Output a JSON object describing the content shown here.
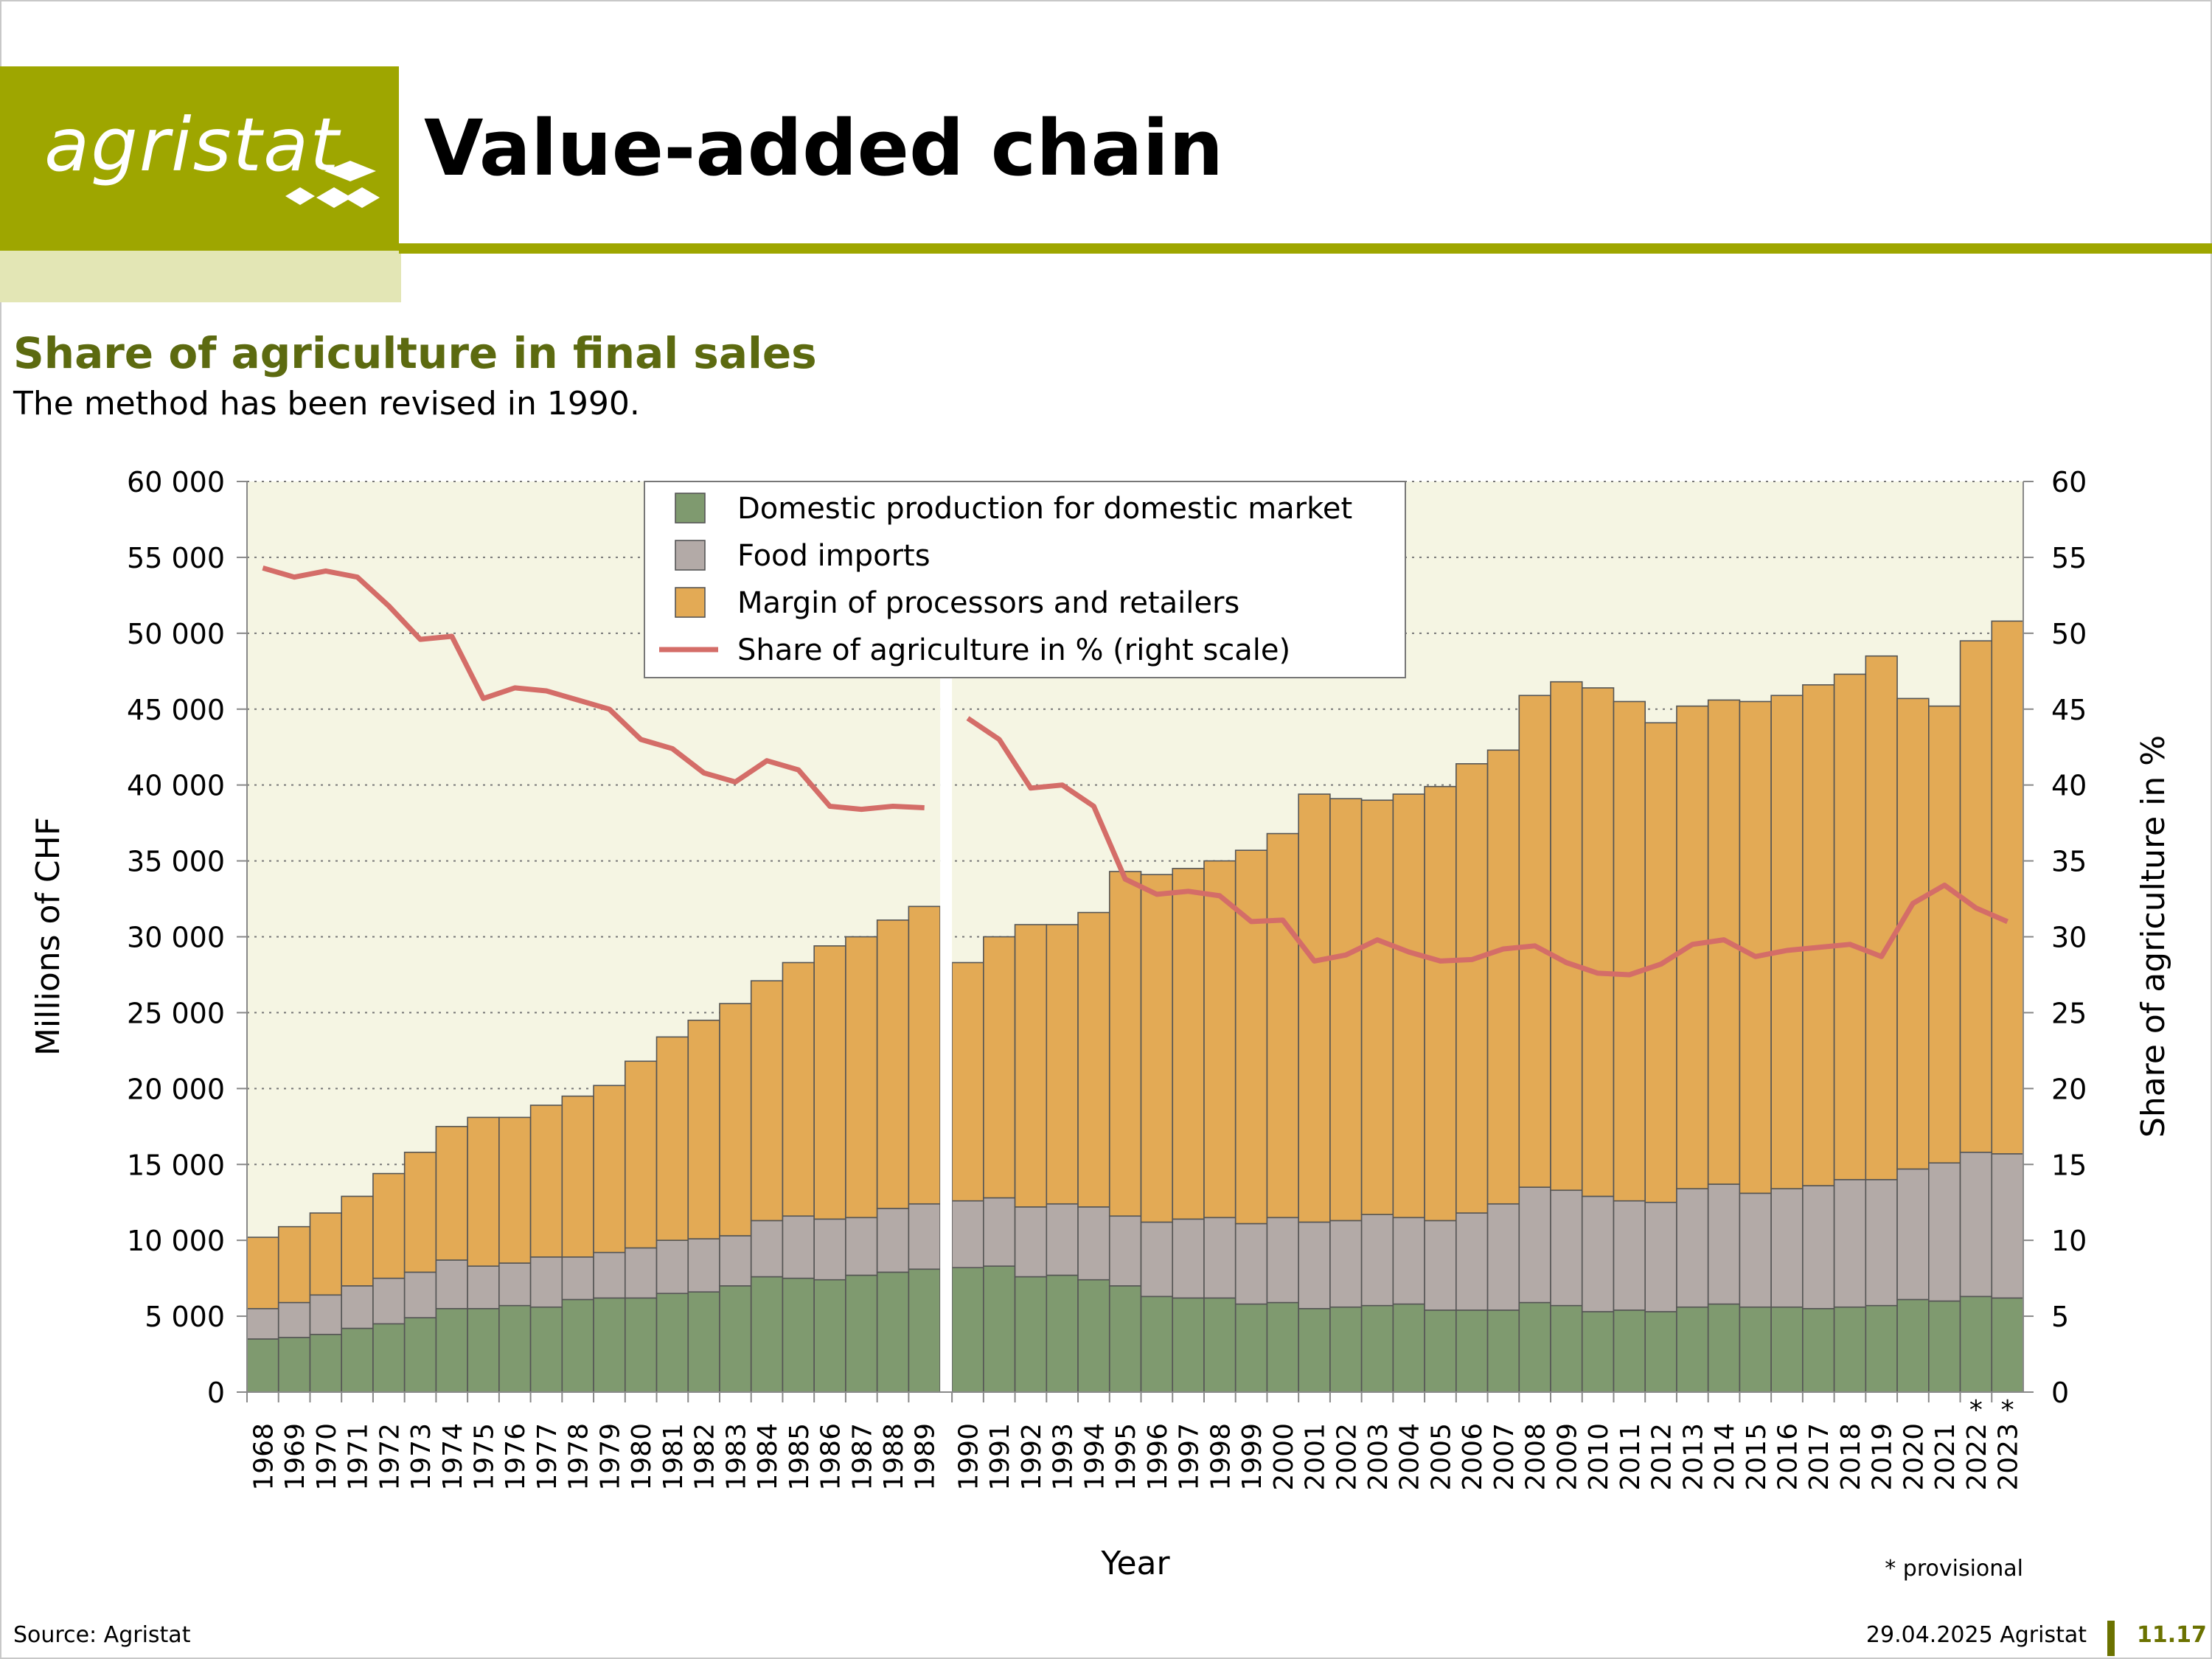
{
  "header": {
    "logo_text": "agristat",
    "title": "Value-added chain"
  },
  "chart_data": {
    "type": "bar",
    "stacked": true,
    "title": "Share of agriculture in final sales",
    "subtitle": "The method has been revised in 1990.",
    "xlabel": "Year",
    "ylabel": "Millions of CHF",
    "y2label": "Share of agriculture in %",
    "ylim": [
      0,
      60000
    ],
    "y2lim": [
      0,
      60
    ],
    "yticks": [
      "0",
      "5 000",
      "10 000",
      "15 000",
      "20 000",
      "25 000",
      "30 000",
      "35 000",
      "40 000",
      "45 000",
      "50 000",
      "55 000",
      "60 000"
    ],
    "y2ticks": [
      "0",
      "5",
      "10",
      "15",
      "20",
      "25",
      "30",
      "35",
      "40",
      "45",
      "50",
      "55",
      "60"
    ],
    "grid": true,
    "legend_position": "top-center",
    "break_after": "1989",
    "categories": [
      "1968",
      "1969",
      "1970",
      "1971",
      "1972",
      "1973",
      "1974",
      "1975",
      "1976",
      "1977",
      "1978",
      "1979",
      "1980",
      "1981",
      "1982",
      "1983",
      "1984",
      "1985",
      "1986",
      "1987",
      "1988",
      "1989",
      "1990",
      "1991",
      "1992",
      "1993",
      "1994",
      "1995",
      "1996",
      "1997",
      "1998",
      "1999",
      "2000",
      "2001",
      "2002",
      "2003",
      "2004",
      "2005",
      "2006",
      "2007",
      "2008",
      "2009",
      "2010",
      "2011",
      "2012",
      "2013",
      "2014",
      "2015",
      "2016",
      "2017",
      "2018",
      "2019",
      "2020",
      "2021",
      "2022",
      "2023"
    ],
    "provisional_marks": [
      "*",
      "*"
    ],
    "provisional_years": [
      "2022",
      "2023"
    ],
    "provisional_note": "* provisional",
    "series": [
      {
        "name": "Domestic production for domestic market",
        "color": "#7f9a6f",
        "values": [
          3500,
          3600,
          3800,
          4200,
          4500,
          4900,
          5500,
          5500,
          5700,
          5600,
          6100,
          6200,
          6200,
          6500,
          6600,
          7000,
          7600,
          7500,
          7400,
          7700,
          7900,
          8100,
          8200,
          8300,
          7600,
          7700,
          7400,
          7000,
          6300,
          6200,
          6200,
          5800,
          5900,
          5500,
          5600,
          5700,
          5800,
          5400,
          5400,
          5400,
          5900,
          5700,
          5300,
          5400,
          5300,
          5600,
          5800,
          5600,
          5600,
          5500,
          5600,
          5700,
          6100,
          6000,
          6300,
          6200
        ]
      },
      {
        "name": "Food imports",
        "color": "#b3aaa7",
        "values": [
          2000,
          2300,
          2600,
          2800,
          3000,
          3000,
          3200,
          2800,
          2800,
          3300,
          2800,
          3000,
          3300,
          3500,
          3500,
          3300,
          3700,
          4100,
          4000,
          3800,
          4200,
          4300,
          4400,
          4500,
          4600,
          4700,
          4800,
          4600,
          4900,
          5200,
          5300,
          5300,
          5600,
          5700,
          5700,
          6000,
          5700,
          5900,
          6400,
          7000,
          7600,
          7600,
          7600,
          7200,
          7200,
          7800,
          7900,
          7500,
          7800,
          8100,
          8400,
          8300,
          8600,
          9100,
          9500,
          9500
        ]
      },
      {
        "name": "Margin of processors and retailers",
        "color": "#e3aa55",
        "values": [
          4700,
          5000,
          5400,
          5900,
          6900,
          7900,
          8800,
          9800,
          9600,
          10000,
          10600,
          11000,
          12300,
          13400,
          14400,
          15300,
          15800,
          16700,
          18000,
          18500,
          19000,
          19600,
          15700,
          17200,
          18600,
          18400,
          19400,
          22700,
          22900,
          23100,
          23500,
          24600,
          25300,
          28200,
          27800,
          27300,
          27900,
          28600,
          29600,
          29900,
          32400,
          33500,
          33500,
          32900,
          31600,
          31800,
          31900,
          32400,
          32500,
          33000,
          33300,
          34500,
          31000,
          30100,
          33700,
          35100
        ]
      }
    ],
    "line": {
      "name": "Share of agriculture in % (right scale)",
      "color": "#d46d68",
      "values": [
        54.3,
        53.7,
        54.1,
        53.7,
        51.8,
        49.6,
        49.8,
        45.7,
        46.4,
        46.2,
        45.6,
        45.0,
        43.0,
        42.4,
        40.8,
        40.2,
        41.6,
        41.0,
        38.6,
        38.4,
        38.6,
        38.5,
        44.4,
        43.0,
        39.8,
        40.0,
        38.6,
        33.8,
        32.8,
        33.0,
        32.7,
        31.0,
        31.1,
        28.4,
        28.8,
        29.8,
        29.0,
        28.4,
        28.5,
        29.2,
        29.4,
        28.3,
        27.6,
        27.5,
        28.2,
        29.5,
        29.8,
        28.7,
        29.1,
        29.3,
        29.5,
        28.7,
        32.2,
        33.4,
        31.9,
        31.0
      ]
    }
  },
  "footer": {
    "source": "Source: Agristat",
    "date": "29.04.2025 Agristat",
    "page": "11.17"
  }
}
